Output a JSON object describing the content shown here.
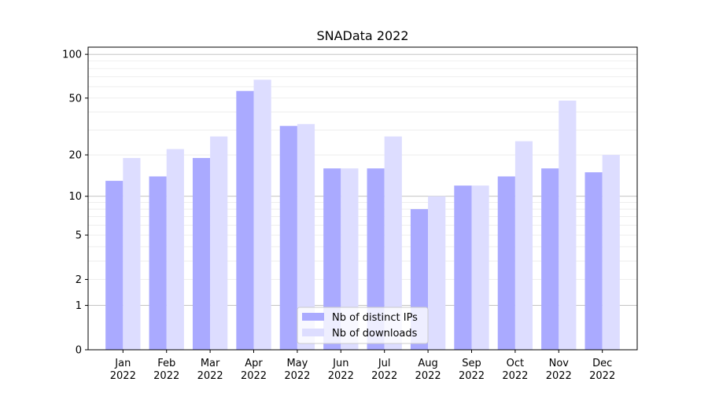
{
  "chart_data": {
    "type": "bar",
    "title": "SNAData 2022",
    "xlabel": "",
    "ylabel": "",
    "yscale": "log(1+y)",
    "ylim": [
      0,
      100
    ],
    "yticks": [
      0,
      1,
      2,
      5,
      10,
      20,
      50,
      100
    ],
    "grid": true,
    "legend_position": "bottom-center",
    "categories": [
      "Jan\n2022",
      "Feb\n2022",
      "Mar\n2022",
      "Apr\n2022",
      "May\n2022",
      "Jun\n2022",
      "Jul\n2022",
      "Aug\n2022",
      "Sep\n2022",
      "Oct\n2022",
      "Nov\n2022",
      "Dec\n2022"
    ],
    "series": [
      {
        "name": "Nb of distinct IPs",
        "color": "#aaaaff",
        "values": [
          13,
          14,
          19,
          56,
          32,
          16,
          16,
          8,
          12,
          14,
          16,
          15
        ]
      },
      {
        "name": "Nb of downloads",
        "color": "#ddddff",
        "values": [
          19,
          22,
          27,
          67,
          33,
          16,
          27,
          10,
          12,
          25,
          48,
          20
        ]
      }
    ]
  }
}
